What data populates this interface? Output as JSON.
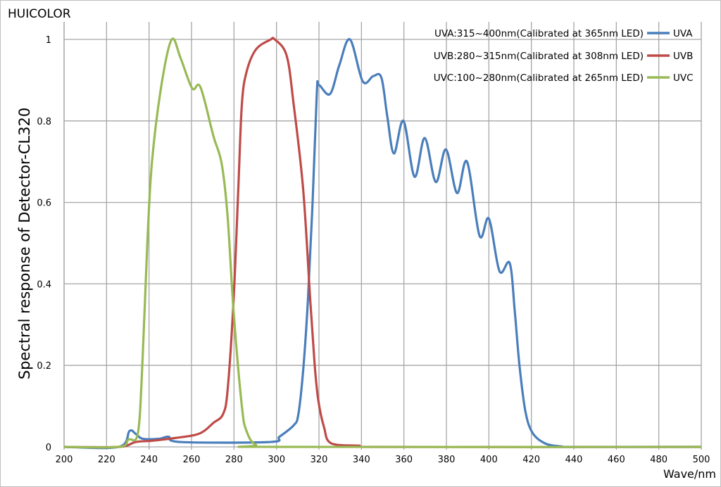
{
  "brand": "HUICOLOR",
  "chart_data": {
    "type": "line",
    "title": "",
    "xlabel": "Wave/nm",
    "ylabel": "Spectral response of Detector-CL320",
    "xlim": [
      200,
      500
    ],
    "ylim": [
      0,
      1
    ],
    "xticks": [
      200,
      220,
      240,
      260,
      280,
      300,
      320,
      340,
      360,
      380,
      400,
      420,
      440,
      460,
      480,
      500
    ],
    "yticks": [
      0,
      0.2,
      0.4,
      0.6,
      0.8,
      1
    ],
    "ytick_labels": [
      "0",
      "0.2",
      "0.4",
      "0.6",
      "0.8",
      "1"
    ],
    "grid": true,
    "legend_placement": "top-right",
    "legend_descriptions": [
      "UVA:315~400nm(Calibrated at 365nm LED)",
      "UVB:280~315nm(Calibrated at 308nm LED)",
      "UVC:100~280nm(Calibrated at 265nm LED)"
    ],
    "series": [
      {
        "name": "UVA",
        "color": "#4a7ebb",
        "points": [
          [
            200,
            0
          ],
          [
            225.8,
            0
          ],
          [
            230.8,
            0.039
          ],
          [
            233.7,
            0.032
          ],
          [
            237,
            0.02
          ],
          [
            244.8,
            0.02
          ],
          [
            249.2,
            0.025
          ],
          [
            254.8,
            0.012
          ],
          [
            297,
            0.012
          ],
          [
            301.4,
            0.025
          ],
          [
            308.1,
            0.053
          ],
          [
            310.3,
            0.08
          ],
          [
            312.6,
            0.19
          ],
          [
            314.8,
            0.36
          ],
          [
            317,
            0.6
          ],
          [
            319,
            0.87
          ],
          [
            320,
            0.888
          ],
          [
            325.2,
            0.866
          ],
          [
            329.6,
            0.937
          ],
          [
            334.6,
            1.0
          ],
          [
            340.6,
            0.897
          ],
          [
            345.6,
            0.91
          ],
          [
            349.4,
            0.906
          ],
          [
            352.2,
            0.81
          ],
          [
            355.3,
            0.72
          ],
          [
            359.8,
            0.8
          ],
          [
            365,
            0.663
          ],
          [
            369.8,
            0.758
          ],
          [
            375,
            0.65
          ],
          [
            379.8,
            0.73
          ],
          [
            385,
            0.623
          ],
          [
            389.7,
            0.7
          ],
          [
            395.6,
            0.518
          ],
          [
            400,
            0.56
          ],
          [
            405,
            0.431
          ],
          [
            409.8,
            0.451
          ],
          [
            412.2,
            0.332
          ],
          [
            414.4,
            0.2
          ],
          [
            417.2,
            0.087
          ],
          [
            420.6,
            0.034
          ],
          [
            426.7,
            0.008
          ],
          [
            434.4,
            0.001
          ],
          [
            440,
            0
          ],
          [
            500,
            0
          ]
        ]
      },
      {
        "name": "UVB",
        "color": "#be4b48",
        "points": [
          [
            200,
            0
          ],
          [
            225.8,
            0
          ],
          [
            233.7,
            0.012
          ],
          [
            241.4,
            0.015
          ],
          [
            252.6,
            0.022
          ],
          [
            261.4,
            0.029
          ],
          [
            265.9,
            0.039
          ],
          [
            270.3,
            0.059
          ],
          [
            274.8,
            0.08
          ],
          [
            277,
            0.14
          ],
          [
            279.8,
            0.36
          ],
          [
            282,
            0.63
          ],
          [
            283.7,
            0.84
          ],
          [
            285.9,
            0.92
          ],
          [
            290.3,
            0.975
          ],
          [
            297,
            0.999
          ],
          [
            299.2,
            1.0
          ],
          [
            304.8,
            0.96
          ],
          [
            308.1,
            0.84
          ],
          [
            312.6,
            0.63
          ],
          [
            315.9,
            0.36
          ],
          [
            318,
            0.2
          ],
          [
            319.7,
            0.114
          ],
          [
            322.4,
            0.048
          ],
          [
            325.7,
            0.009
          ],
          [
            338.9,
            0.003
          ],
          [
            345,
            0
          ],
          [
            500,
            0
          ]
        ]
      },
      {
        "name": "UVC",
        "color": "#98b954",
        "points": [
          [
            200,
            0
          ],
          [
            225.8,
            0
          ],
          [
            230.3,
            0.018
          ],
          [
            234.8,
            0.035
          ],
          [
            237,
            0.22
          ],
          [
            239.2,
            0.5
          ],
          [
            241.4,
            0.7
          ],
          [
            245.9,
            0.89
          ],
          [
            250.7,
            1.0
          ],
          [
            254.8,
            0.955
          ],
          [
            260.3,
            0.88
          ],
          [
            264.2,
            0.883
          ],
          [
            270.3,
            0.763
          ],
          [
            274.2,
            0.695
          ],
          [
            277,
            0.565
          ],
          [
            279.8,
            0.333
          ],
          [
            283.7,
            0.1
          ],
          [
            285.9,
            0.039
          ],
          [
            290.3,
            0.005
          ],
          [
            300,
            0
          ],
          [
            500,
            0
          ]
        ]
      }
    ]
  }
}
